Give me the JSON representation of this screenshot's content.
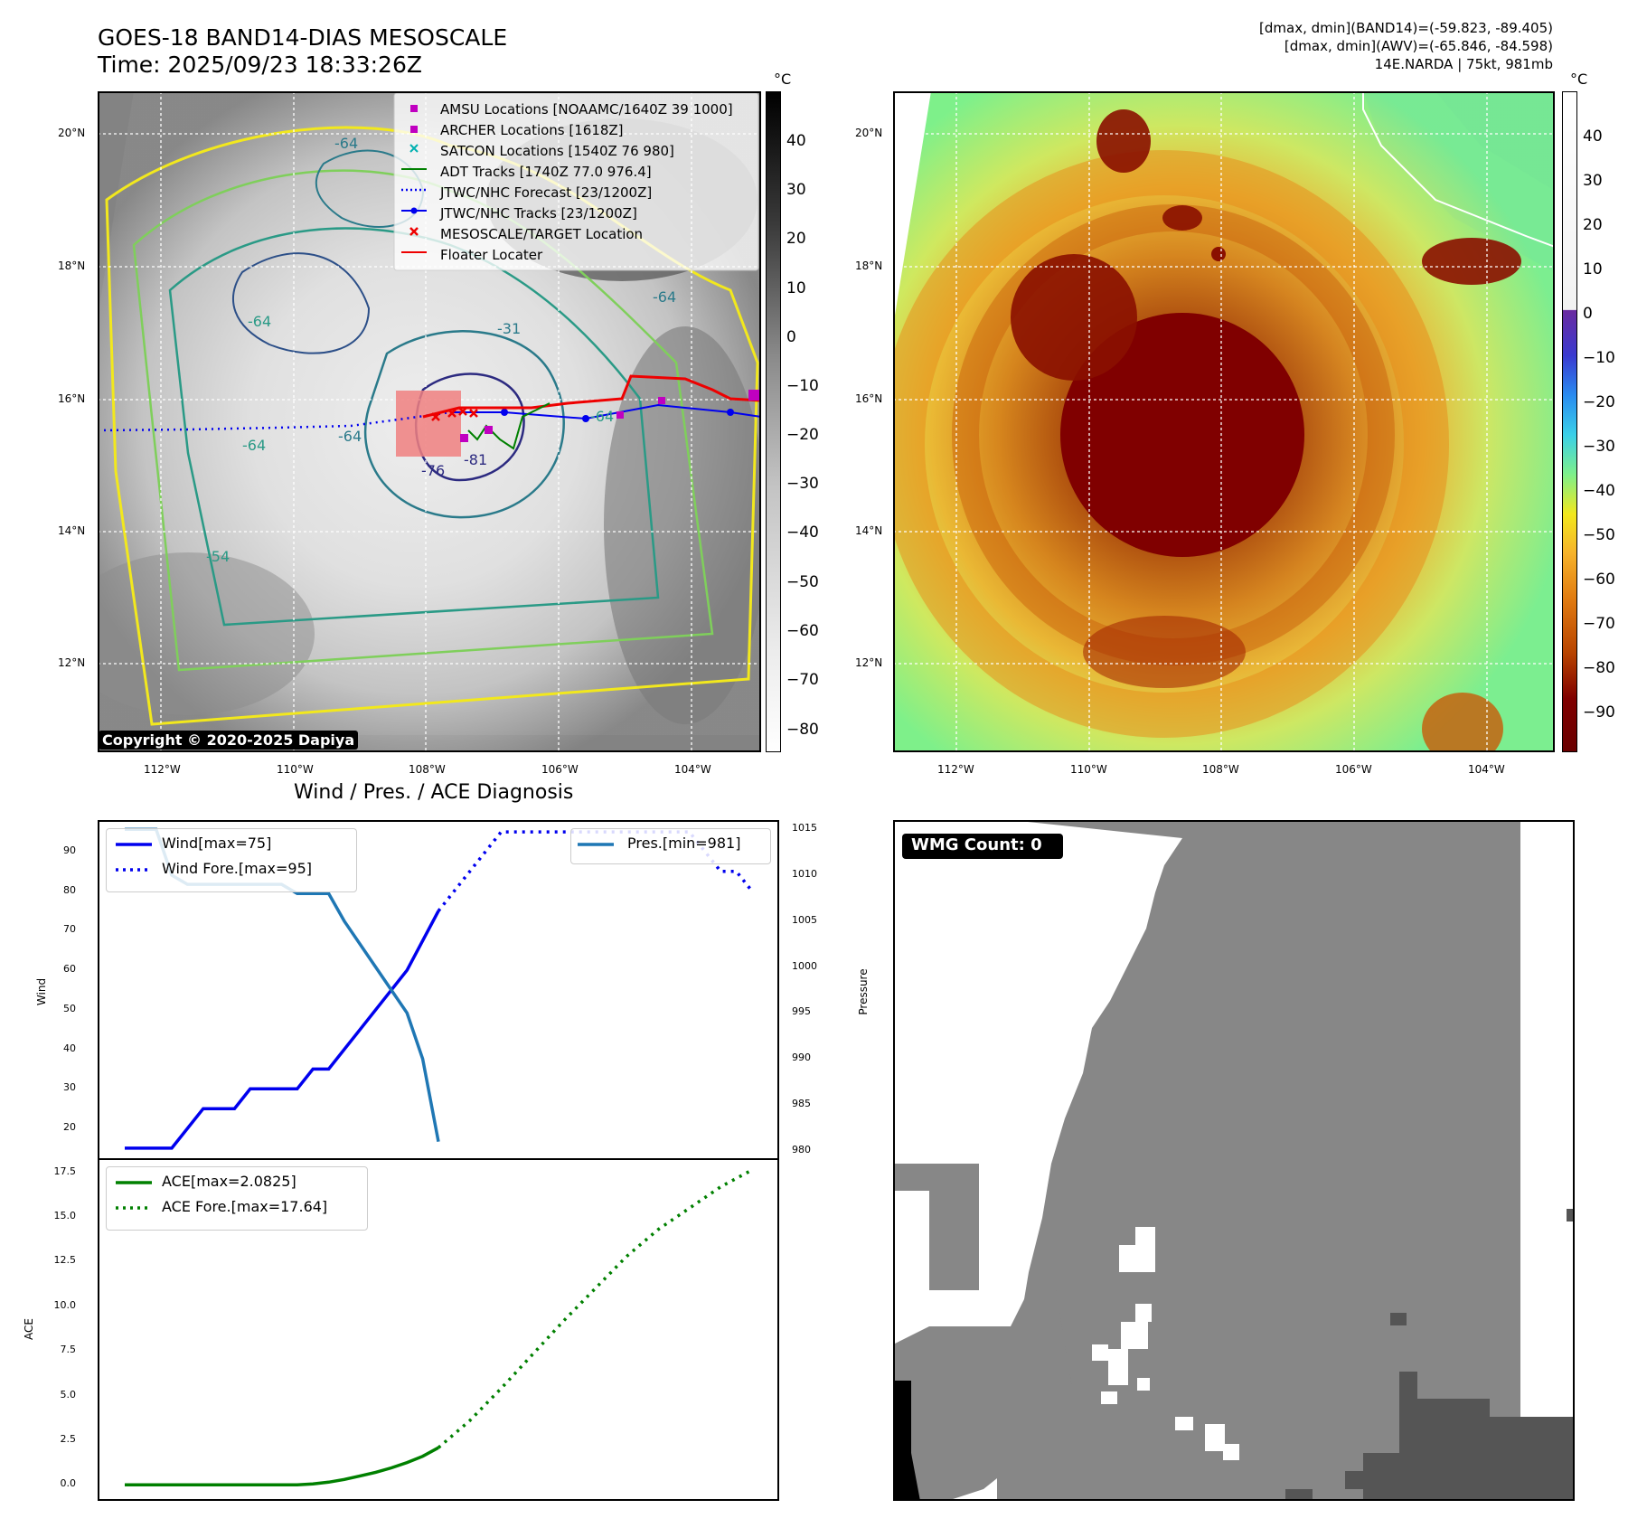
{
  "header": {
    "title_line1": "GOES-18 BAND14-DIAS MESOSCALE",
    "title_line2": "Time: 2025/09/23 18:33:26Z",
    "info_line1": "[dmax, dmin](BAND14)=(-59.823, -89.405)",
    "info_line2": "[dmax, dmin](AWV)=(-65.846, -84.598)",
    "info_line3": "14E.NARDA | 75kt, 981mb"
  },
  "map_ir": {
    "copyright": "Copyright © 2020-2025 Dapiya",
    "lat_labels": [
      "20°N",
      "18°N",
      "16°N",
      "14°N",
      "12°N"
    ],
    "lon_labels": [
      "112°W",
      "110°W",
      "108°W",
      "106°W",
      "104°W"
    ],
    "contour_labels": [
      "-64",
      "-64",
      "-64",
      "-54",
      "-76",
      "-81",
      "-31",
      "-64",
      "-64",
      "-64"
    ],
    "legend": [
      "AMSU Locations [NOAAMC/1640Z 39 1000]",
      "ARCHER Locations [1618Z]",
      "SATCON Locations [1540Z 76 980]",
      "ADT Tracks [1740Z 77.0 976.4]",
      "JTWC/NHC Forecast [23/1200Z]",
      "JTWC/NHC Tracks [23/1200Z]",
      "MESOSCALE/TARGET Location",
      "Floater Locater"
    ],
    "colorbar_unit": "°C",
    "colorbar_ticks": [
      "40",
      "30",
      "20",
      "10",
      "0",
      "−10",
      "−20",
      "−30",
      "−40",
      "−50",
      "−60",
      "−70",
      "−80"
    ]
  },
  "map_color": {
    "lat_labels": [
      "20°N",
      "18°N",
      "16°N",
      "14°N",
      "12°N"
    ],
    "lon_labels": [
      "112°W",
      "110°W",
      "108°W",
      "106°W",
      "104°W"
    ],
    "colorbar_unit": "°C",
    "colorbar_ticks": [
      "40",
      "30",
      "20",
      "10",
      "0",
      "−10",
      "−20",
      "−30",
      "−40",
      "−50",
      "−60",
      "−70",
      "−80",
      "−90"
    ]
  },
  "wmg": {
    "label": "WMG Count: 0"
  },
  "colors": {
    "wind": "#0000ee",
    "pressure": "#1f77b4",
    "ace": "#008000",
    "amsu": "#c000c0",
    "satcon": "#00b0b0",
    "floater": "#ee0000",
    "wmg_gray": "#878787",
    "wmg_dark": "#555555"
  },
  "chart_data": [
    {
      "type": "line",
      "title": "Wind / Pres. / ACE Diagnosis",
      "xlabel": "",
      "ylabel": "Wind",
      "ylabel_right": "Pressure",
      "ylim": [
        12,
        98
      ],
      "ylim_right": [
        979,
        1016
      ],
      "yticks": [
        20,
        30,
        40,
        50,
        60,
        70,
        80,
        90
      ],
      "yticks_right": [
        980,
        985,
        990,
        995,
        1000,
        1005,
        1010,
        1015
      ],
      "x": [
        0,
        1,
        2,
        3,
        4,
        5,
        6,
        7,
        8,
        9,
        10,
        11,
        12,
        13,
        14,
        15,
        16,
        17,
        18,
        19,
        20,
        21,
        22,
        23,
        24,
        25,
        26,
        27,
        28,
        29,
        30,
        31,
        32,
        33,
        34,
        35,
        36,
        37,
        38,
        39,
        40
      ],
      "series": [
        {
          "name": "Wind[max=75]",
          "axis": "left",
          "style": "solid",
          "x": [
            0,
            3,
            5,
            7,
            8,
            9,
            11,
            12,
            13,
            15,
            18,
            20
          ],
          "values": [
            15,
            15,
            25,
            25,
            30,
            30,
            30,
            35,
            35,
            45,
            60,
            75
          ]
        },
        {
          "name": "Wind Fore.[max=95]",
          "axis": "left",
          "style": "dotted",
          "x": [
            20,
            22,
            24,
            26,
            28,
            30,
            32,
            34,
            36,
            37,
            38,
            39,
            40
          ],
          "values": [
            75,
            85,
            95,
            95,
            95,
            95,
            95,
            95,
            95,
            90,
            85,
            85,
            80
          ]
        },
        {
          "name": "Pres.[min=981]",
          "axis": "right",
          "style": "solid",
          "x": [
            0,
            2,
            3,
            4,
            6,
            9,
            10,
            11,
            12,
            13,
            14,
            16,
            18,
            19,
            20
          ],
          "values": [
            1015,
            1015,
            1010,
            1009,
            1009,
            1009,
            1009,
            1008,
            1008,
            1008,
            1005,
            1000,
            995,
            990,
            981
          ]
        }
      ]
    },
    {
      "type": "line",
      "xlabel": "",
      "ylabel": "ACE",
      "ylim": [
        -0.9,
        18.3
      ],
      "yticks": [
        0.0,
        2.5,
        5.0,
        7.5,
        10.0,
        12.5,
        15.0,
        17.5
      ],
      "yticklabels": [
        "0.0",
        "2.5",
        "5.0",
        "7.5",
        "10.0",
        "12.5",
        "15.0",
        "17.5"
      ],
      "series": [
        {
          "name": "ACE[max=2.0825]",
          "style": "solid",
          "x": [
            0,
            4,
            8,
            11,
            12,
            13,
            14,
            15,
            16,
            17,
            18,
            19,
            20
          ],
          "values": [
            0,
            0,
            0,
            0,
            0.05,
            0.15,
            0.3,
            0.5,
            0.7,
            0.95,
            1.25,
            1.6,
            2.08
          ]
        },
        {
          "name": "ACE Fore.[max=17.64]",
          "style": "dotted",
          "x": [
            20,
            22,
            24,
            26,
            28,
            30,
            32,
            34,
            36,
            38,
            40
          ],
          "values": [
            2.08,
            3.6,
            5.4,
            7.3,
            9.2,
            11.0,
            12.8,
            14.3,
            15.5,
            16.7,
            17.64
          ]
        }
      ]
    }
  ]
}
